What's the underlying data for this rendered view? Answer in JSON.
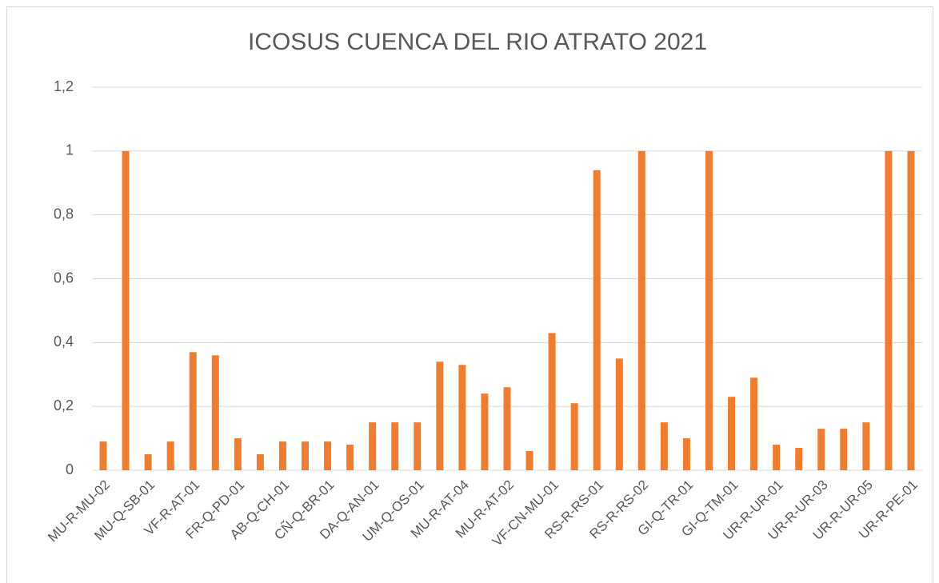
{
  "chart_data": {
    "type": "bar",
    "title": "ICOSUS CUENCA DEL RIO ATRATO 2021",
    "categories": [
      "MU-R-MU-02",
      null,
      "MU-Q-SB-01",
      null,
      "VF-R-AT-01",
      null,
      "FR-Q-PD-01",
      null,
      "AB-Q-CH-01",
      null,
      "CÑ-Q-BR-01",
      null,
      "DA-Q-AN-01",
      null,
      "UM-Q-OS-01",
      null,
      "MU-R-AT-04",
      null,
      "MU-R-AT-02",
      null,
      "VF-CN-MU-01",
      null,
      "RS-R-RS-01",
      null,
      "RS-R-RS-02",
      null,
      "GI-Q-TR-01",
      null,
      "GI-Q-TM-01",
      null,
      "UR-R-UR-01",
      null,
      "UR-R-UR-03",
      null,
      "UR-R-UR-05",
      null,
      "UR-R-PE-01"
    ],
    "values": [
      0.09,
      1,
      0.05,
      0.09,
      0.37,
      0.36,
      0.1,
      0.05,
      0.09,
      0.09,
      0.09,
      0.08,
      0.15,
      0.15,
      0.15,
      0.34,
      0.33,
      0.24,
      0.26,
      0.06,
      0.43,
      0.21,
      0.94,
      0.35,
      1,
      0.15,
      0.1,
      1,
      0.23,
      0.29,
      0.08,
      0.07,
      0.13,
      0.13,
      0.15,
      1,
      1
    ],
    "color": "#ed7d31",
    "ylim": [
      0,
      1.2
    ],
    "yticks": [
      0,
      {
        "value": 0.2,
        "label": "0,2"
      },
      {
        "value": 0.4,
        "label": "0,4"
      },
      {
        "value": 0.6,
        "label": "0,6"
      },
      {
        "value": 0.8,
        "label": "0,8"
      },
      1,
      {
        "value": 1.2,
        "label": "1,2"
      }
    ],
    "grid": true
  }
}
